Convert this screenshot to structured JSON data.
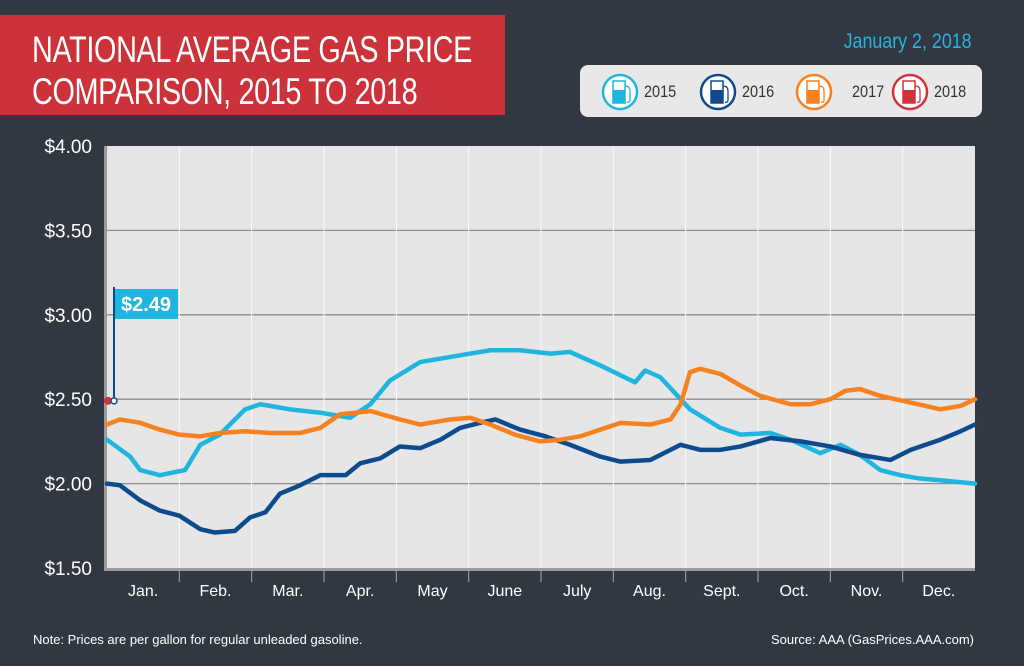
{
  "header": {
    "title_line1": "NATIONAL AVERAGE GAS PRICE",
    "title_line2": "COMPARISON, 2015 TO 2018",
    "date": "January 2, 2018"
  },
  "legend": [
    {
      "label": "2015",
      "color": "#1fb5df",
      "icon": "gas-pump-icon"
    },
    {
      "label": "2016",
      "color": "#0d4b8e",
      "icon": "gas-pump-icon"
    },
    {
      "label": "2017",
      "color": "#f7811f",
      "icon": "gas-pump-icon"
    },
    {
      "label": "2018",
      "color": "#d1333c",
      "icon": "gas-pump-icon"
    }
  ],
  "chart_data": {
    "type": "line",
    "x_categories": [
      "Jan.",
      "Feb.",
      "Mar.",
      "Apr.",
      "May",
      "June",
      "July",
      "Aug.",
      "Sept.",
      "Oct.",
      "Nov.",
      "Dec."
    ],
    "x_unit": "months from Jan. 1",
    "y_ticks": [
      "$4.00",
      "$3.50",
      "$3.00",
      "$2.50",
      "$2.00",
      "$1.50"
    ],
    "ylim": [
      1.5,
      4.0
    ],
    "grid": true,
    "annotation": {
      "label": "$2.49",
      "value": 2.49,
      "series": "2018"
    },
    "series": [
      {
        "name": "2015",
        "color": "#1fb5df",
        "points": [
          [
            0,
            2.26
          ],
          [
            0.32,
            2.16
          ],
          [
            0.46,
            2.08
          ],
          [
            0.73,
            2.05
          ],
          [
            1.08,
            2.08
          ],
          [
            1.29,
            2.23
          ],
          [
            1.56,
            2.29
          ],
          [
            1.91,
            2.44
          ],
          [
            2.12,
            2.47
          ],
          [
            2.53,
            2.44
          ],
          [
            2.95,
            2.42
          ],
          [
            3.36,
            2.39
          ],
          [
            3.64,
            2.47
          ],
          [
            3.91,
            2.61
          ],
          [
            4.33,
            2.72
          ],
          [
            4.88,
            2.76
          ],
          [
            5.3,
            2.79
          ],
          [
            5.71,
            2.79
          ],
          [
            6.13,
            2.77
          ],
          [
            6.4,
            2.78
          ],
          [
            6.82,
            2.7
          ],
          [
            7.3,
            2.6
          ],
          [
            7.44,
            2.67
          ],
          [
            7.65,
            2.63
          ],
          [
            8.06,
            2.44
          ],
          [
            8.48,
            2.33
          ],
          [
            8.76,
            2.29
          ],
          [
            9.17,
            2.3
          ],
          [
            9.45,
            2.26
          ],
          [
            9.86,
            2.18
          ],
          [
            10.14,
            2.23
          ],
          [
            10.41,
            2.17
          ],
          [
            10.69,
            2.08
          ],
          [
            10.97,
            2.05
          ],
          [
            11.24,
            2.03
          ],
          [
            11.52,
            2.02
          ],
          [
            12,
            2.0
          ]
        ]
      },
      {
        "name": "2016",
        "color": "#0d4b8e",
        "points": [
          [
            0,
            2.0
          ],
          [
            0.18,
            1.99
          ],
          [
            0.46,
            1.9
          ],
          [
            0.73,
            1.84
          ],
          [
            1.0,
            1.81
          ],
          [
            1.29,
            1.73
          ],
          [
            1.49,
            1.71
          ],
          [
            1.77,
            1.72
          ],
          [
            1.98,
            1.8
          ],
          [
            2.19,
            1.83
          ],
          [
            2.39,
            1.94
          ],
          [
            2.67,
            1.99
          ],
          [
            2.95,
            2.05
          ],
          [
            3.3,
            2.05
          ],
          [
            3.5,
            2.12
          ],
          [
            3.78,
            2.15
          ],
          [
            4.05,
            2.22
          ],
          [
            4.33,
            2.21
          ],
          [
            4.61,
            2.26
          ],
          [
            4.88,
            2.33
          ],
          [
            5.16,
            2.36
          ],
          [
            5.37,
            2.38
          ],
          [
            5.71,
            2.32
          ],
          [
            6.06,
            2.28
          ],
          [
            6.4,
            2.23
          ],
          [
            6.82,
            2.16
          ],
          [
            7.1,
            2.13
          ],
          [
            7.51,
            2.14
          ],
          [
            7.93,
            2.23
          ],
          [
            8.2,
            2.2
          ],
          [
            8.48,
            2.2
          ],
          [
            8.76,
            2.22
          ],
          [
            9.17,
            2.27
          ],
          [
            9.59,
            2.25
          ],
          [
            10.0,
            2.22
          ],
          [
            10.41,
            2.17
          ],
          [
            10.83,
            2.14
          ],
          [
            11.11,
            2.2
          ],
          [
            11.52,
            2.26
          ],
          [
            11.8,
            2.31
          ],
          [
            12,
            2.35
          ]
        ]
      },
      {
        "name": "2017",
        "color": "#f7811f",
        "points": [
          [
            0,
            2.35
          ],
          [
            0.18,
            2.38
          ],
          [
            0.46,
            2.36
          ],
          [
            0.73,
            2.32
          ],
          [
            1.0,
            2.29
          ],
          [
            1.29,
            2.28
          ],
          [
            1.56,
            2.3
          ],
          [
            1.91,
            2.31
          ],
          [
            2.255,
            2.3
          ],
          [
            2.67,
            2.3
          ],
          [
            2.95,
            2.33
          ],
          [
            3.22,
            2.41
          ],
          [
            3.64,
            2.43
          ],
          [
            4.05,
            2.38
          ],
          [
            4.33,
            2.35
          ],
          [
            4.74,
            2.38
          ],
          [
            5.02,
            2.39
          ],
          [
            5.3,
            2.35
          ],
          [
            5.64,
            2.29
          ],
          [
            5.99,
            2.25
          ],
          [
            6.27,
            2.26
          ],
          [
            6.54,
            2.28
          ],
          [
            6.82,
            2.32
          ],
          [
            7.1,
            2.36
          ],
          [
            7.51,
            2.35
          ],
          [
            7.79,
            2.38
          ],
          [
            7.93,
            2.47
          ],
          [
            8.06,
            2.66
          ],
          [
            8.2,
            2.68
          ],
          [
            8.48,
            2.65
          ],
          [
            8.76,
            2.58
          ],
          [
            9.03,
            2.52
          ],
          [
            9.45,
            2.47
          ],
          [
            9.72,
            2.47
          ],
          [
            10.0,
            2.5
          ],
          [
            10.21,
            2.55
          ],
          [
            10.41,
            2.56
          ],
          [
            10.69,
            2.52
          ],
          [
            11.11,
            2.48
          ],
          [
            11.52,
            2.44
          ],
          [
            11.8,
            2.46
          ],
          [
            12,
            2.5
          ]
        ]
      },
      {
        "name": "2018",
        "color": "#d1333c",
        "points": [
          [
            0,
            2.49
          ]
        ]
      }
    ]
  },
  "footer": {
    "note": "Note: Prices are per gallon for regular unleaded gasoline.",
    "source": "Source: AAA (GasPrices.AAA.com)"
  }
}
